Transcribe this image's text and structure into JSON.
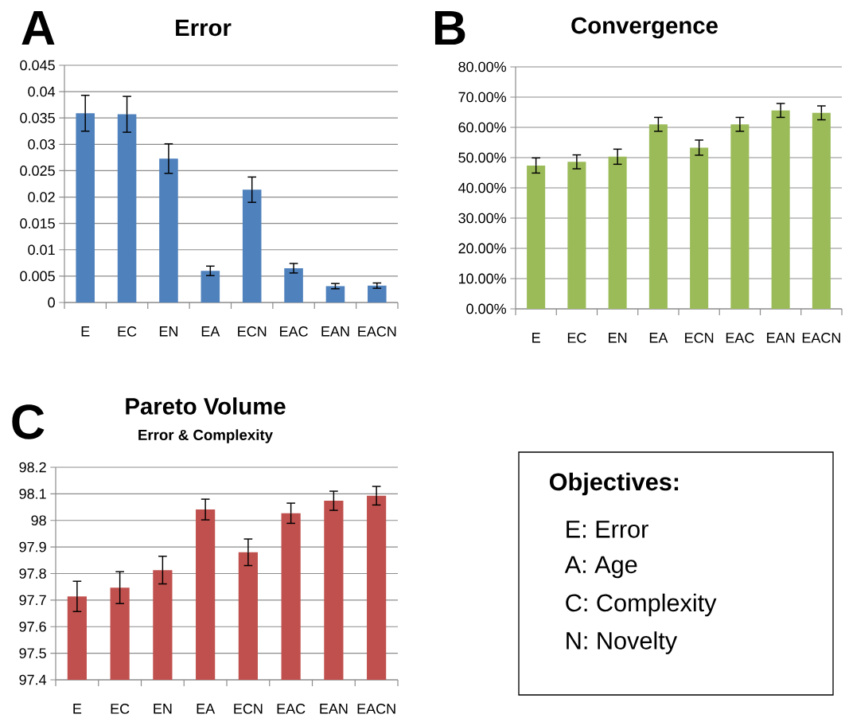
{
  "chart_data": [
    {
      "type": "bar",
      "title": "Error",
      "annotations": [
        "A"
      ],
      "categories": [
        "E",
        "EC",
        "EN",
        "EA",
        "ECN",
        "EAC",
        "EAN",
        "EACN"
      ],
      "color": "#4f81bd",
      "values": [
        0.0359,
        0.0357,
        0.0273,
        0.006,
        0.0214,
        0.0065,
        0.0031,
        0.0032
      ],
      "errors": [
        0.0034,
        0.0034,
        0.0028,
        0.0009,
        0.0024,
        0.0009,
        0.0005,
        0.0005
      ],
      "ylim": [
        0,
        0.045
      ],
      "yticks": [
        0,
        0.005,
        0.01,
        0.015,
        0.02,
        0.025,
        0.03,
        0.035,
        0.04,
        0.045
      ],
      "grid": "y"
    },
    {
      "type": "bar",
      "title": "Convergence",
      "annotations": [
        "B"
      ],
      "categories": [
        "E",
        "EC",
        "EN",
        "EA",
        "ECN",
        "EAC",
        "EAN",
        "EACN"
      ],
      "color": "#9bbb59",
      "values": [
        47.4,
        48.6,
        50.3,
        61.0,
        53.3,
        61.0,
        65.6,
        64.8
      ],
      "errors": [
        2.5,
        2.3,
        2.5,
        2.3,
        2.5,
        2.3,
        2.3,
        2.3
      ],
      "ylim": [
        0,
        80
      ],
      "yticks": [
        {
          "value": 0,
          "label": "0.00%"
        },
        {
          "value": 10,
          "label": "10.00%"
        },
        {
          "value": 20,
          "label": "20.00%"
        },
        {
          "value": 30,
          "label": "30.00%"
        },
        {
          "value": 40,
          "label": "40.00%"
        },
        {
          "value": 50,
          "label": "50.00%"
        },
        {
          "value": 60,
          "label": "60.00%"
        },
        {
          "value": 70,
          "label": "70.00%"
        },
        {
          "value": 80,
          "label": "80.00%"
        }
      ],
      "grid": "y"
    },
    {
      "type": "bar",
      "title": "Pareto Volume",
      "subtitle": "Error & Complexity",
      "annotations": [
        "C"
      ],
      "categories": [
        "E",
        "EC",
        "EN",
        "EA",
        "ECN",
        "EAC",
        "EAN",
        "EACN"
      ],
      "color": "#c0504d",
      "values": [
        97.714,
        97.747,
        97.813,
        98.041,
        97.88,
        98.027,
        98.074,
        98.093
      ],
      "errors": [
        0.057,
        0.06,
        0.052,
        0.039,
        0.05,
        0.038,
        0.036,
        0.035
      ],
      "ylim": [
        97.4,
        98.2
      ],
      "yticks": [
        97.4,
        97.5,
        97.6,
        97.7,
        97.8,
        97.9,
        98,
        98.1,
        98.2
      ],
      "grid": "y"
    },
    {
      "type": "other",
      "title": "Objectives:",
      "annotations": [
        "E: Error",
        "A: Age",
        "C: Complexity",
        "N: Novelty"
      ]
    }
  ]
}
